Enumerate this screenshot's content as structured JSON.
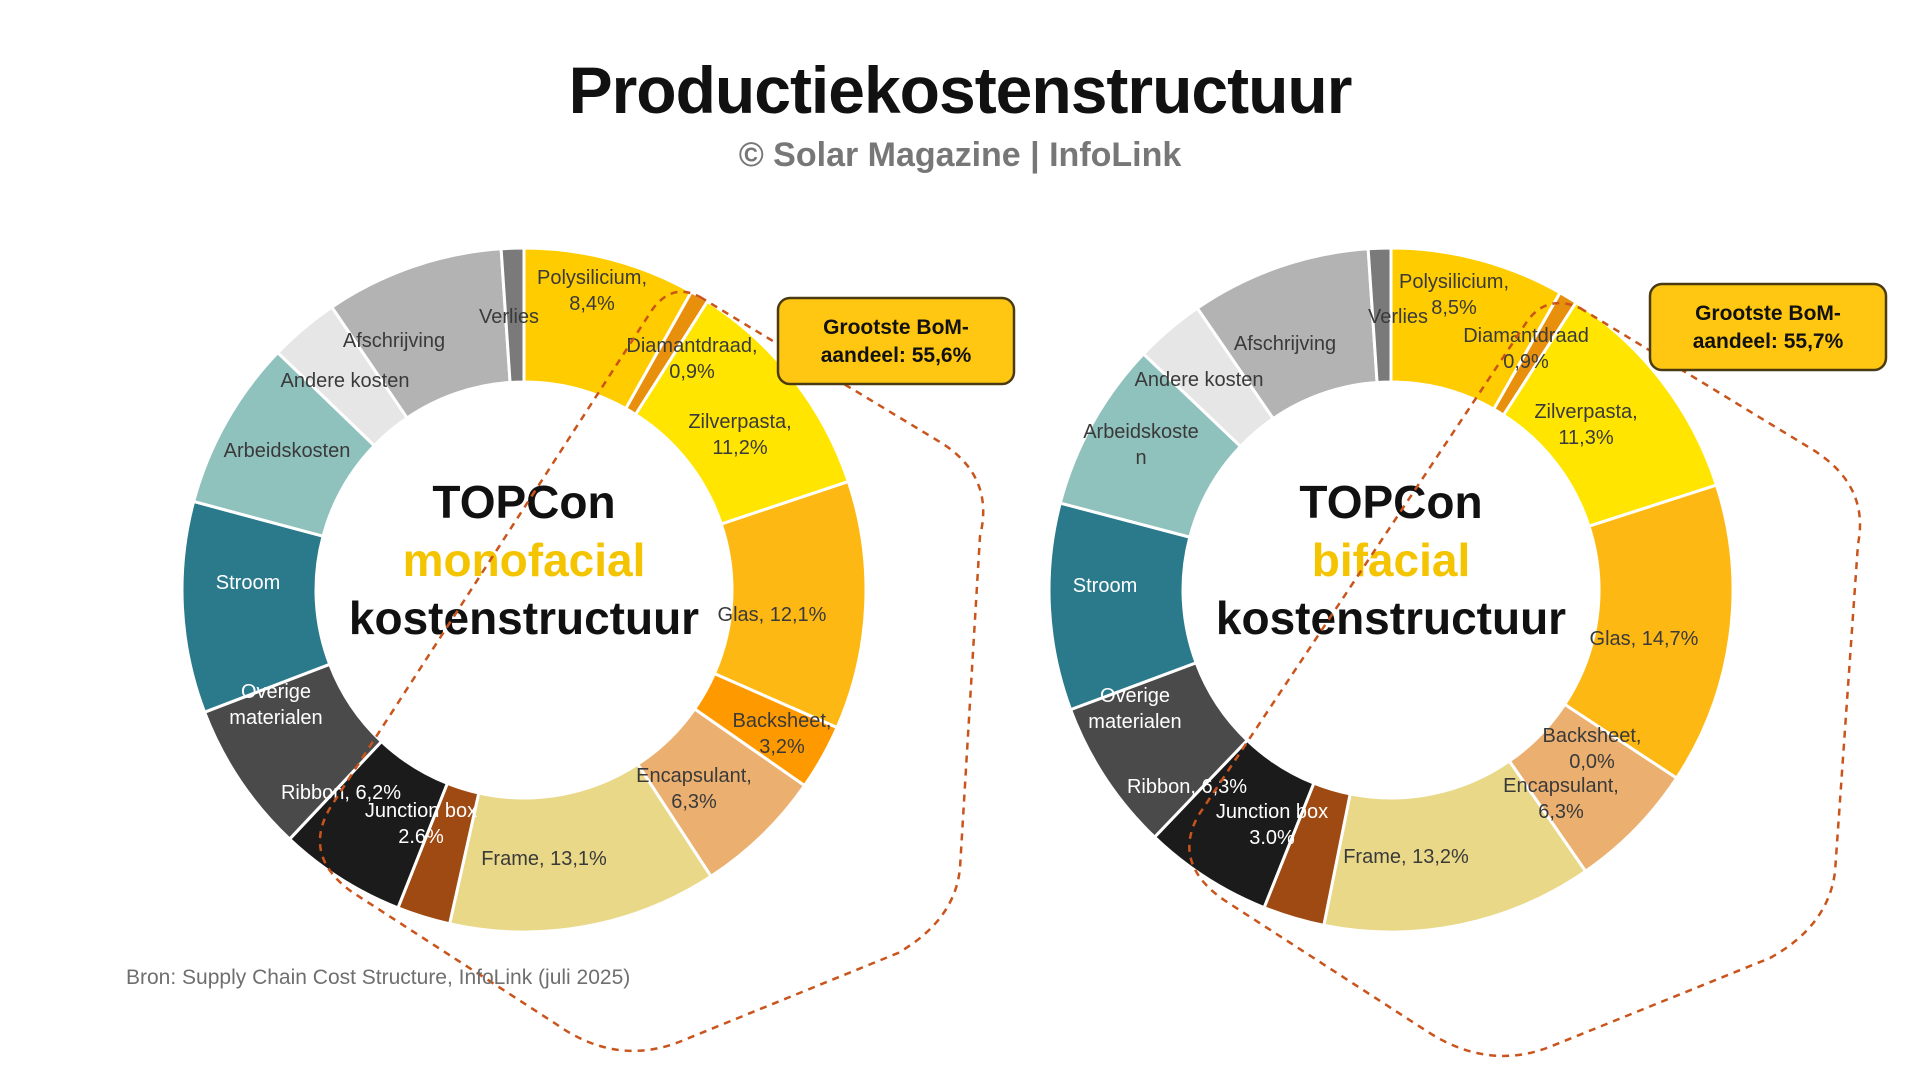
{
  "header": {
    "title": "Productiekostenstructuur",
    "subtitle": "© Solar Magazine | InfoLink"
  },
  "source": "Bron: Supply Chain Cost Structure, InfoLink (juli 2025)",
  "chart_data": [
    {
      "type": "donut",
      "center": {
        "line1": "TOPCon",
        "line2": "monofacial",
        "line3": "kostenstructuur"
      },
      "callout": {
        "line1": "Grootste BoM-",
        "line2": "aandeel: 55,6%"
      },
      "colors": {
        "accent": "#F5C400",
        "callout_border": "#4a3b12",
        "dashed_outline": "#C9541C"
      },
      "slices": [
        {
          "name": "Polysilicium",
          "value": 8.4,
          "label": [
            "Polysilicium,",
            "8,4%"
          ],
          "color": "#FFCC00",
          "text_color": "#3a3a3a"
        },
        {
          "name": "Diamantdraad",
          "value": 0.9,
          "label": [
            "Diamantdraad,",
            "0,9%"
          ],
          "color": "#E8900C",
          "text_color": "#3a3a3a"
        },
        {
          "name": "Zilverpasta",
          "value": 11.2,
          "label": [
            "Zilverpasta,",
            "11,2%"
          ],
          "color": "#FFE500",
          "text_color": "#3a3a3a"
        },
        {
          "name": "Glas",
          "value": 12.1,
          "label": [
            "Glas, 12,1%"
          ],
          "color": "#FDB813",
          "text_color": "#3a3a3a"
        },
        {
          "name": "Backsheet",
          "value": 3.2,
          "label": [
            "Backsheet,",
            "3,2%"
          ],
          "color": "#FF9900",
          "text_color": "#3a3a3a"
        },
        {
          "name": "Encapsulant",
          "value": 6.3,
          "label": [
            "Encapsulant,",
            "6,3%"
          ],
          "color": "#EBAF70",
          "text_color": "#3a3a3a"
        },
        {
          "name": "Frame",
          "value": 13.1,
          "label": [
            "Frame, 13,1%"
          ],
          "color": "#E8D888",
          "text_color": "#3a3a3a"
        },
        {
          "name": "Junction box",
          "value": 2.6,
          "label": [
            "Junction box",
            "2.6%"
          ],
          "color": "#9E4A12",
          "text_color": "#ffffff"
        },
        {
          "name": "Ribbon",
          "value": 6.2,
          "label": [
            "Ribbon, 6,2%"
          ],
          "color": "#1B1B1B",
          "text_color": "#ffffff"
        },
        {
          "name": "Overige materialen",
          "value": 7.4,
          "label": [
            "Overige",
            "materialen"
          ],
          "color": "#4A4A4A",
          "text_color": "#ffffff"
        },
        {
          "name": "Stroom",
          "value": 10.3,
          "label": [
            "Stroom"
          ],
          "color": "#2B7A8C",
          "text_color": "#ffffff"
        },
        {
          "name": "Arbeidskosten",
          "value": 8.3,
          "label": [
            "Arbeidskosten"
          ],
          "color": "#8FC1BD",
          "text_color": "#3a3a3a"
        },
        {
          "name": "Andere kosten",
          "value": 3.4,
          "label": [
            "Andere kosten"
          ],
          "color": "#E6E6E6",
          "text_color": "#3a3a3a"
        },
        {
          "name": "Afschrijving",
          "value": 8.7,
          "label": [
            "Afschrijving"
          ],
          "color": "#B3B3B3",
          "text_color": "#3a3a3a"
        },
        {
          "name": "Verlies",
          "value": 1.1,
          "label": [
            "Verlies"
          ],
          "color": "#7A7A7A",
          "text_color": "#3a3a3a"
        }
      ]
    },
    {
      "type": "donut",
      "center": {
        "line1": "TOPCon",
        "line2": "bifacial",
        "line3": "kostenstructuur"
      },
      "callout": {
        "line1": "Grootste BoM-",
        "line2": "aandeel: 55,7%"
      },
      "colors": {
        "accent": "#F5C400",
        "callout_border": "#4a3b12",
        "dashed_outline": "#C9541C"
      },
      "slices": [
        {
          "name": "Polysilicium",
          "value": 8.5,
          "label": [
            "Polysilicium,",
            "8,5%"
          ],
          "color": "#FFCC00",
          "text_color": "#3a3a3a"
        },
        {
          "name": "Diamantdraad",
          "value": 0.9,
          "label": [
            "Diamantdraad",
            "0,9%"
          ],
          "color": "#E8900C",
          "text_color": "#3a3a3a"
        },
        {
          "name": "Zilverpasta",
          "value": 11.3,
          "label": [
            "Zilverpasta,",
            "11,3%"
          ],
          "color": "#FFE500",
          "text_color": "#3a3a3a"
        },
        {
          "name": "Glas",
          "value": 14.7,
          "label": [
            "Glas, 14,7%"
          ],
          "color": "#FDB813",
          "text_color": "#3a3a3a"
        },
        {
          "name": "Backsheet",
          "value": 0.0,
          "label": [
            "Backsheet,",
            "0,0%"
          ],
          "color": "#FF9900",
          "text_color": "#3a3a3a"
        },
        {
          "name": "Encapsulant",
          "value": 6.3,
          "label": [
            "Encapsulant,",
            "6,3%"
          ],
          "color": "#EBAF70",
          "text_color": "#3a3a3a"
        },
        {
          "name": "Frame",
          "value": 13.2,
          "label": [
            "Frame, 13,2%"
          ],
          "color": "#E8D888",
          "text_color": "#3a3a3a"
        },
        {
          "name": "Junction box",
          "value": 3.0,
          "label": [
            "Junction box",
            "3.0%"
          ],
          "color": "#9E4A12",
          "text_color": "#ffffff"
        },
        {
          "name": "Ribbon",
          "value": 6.3,
          "label": [
            "Ribbon, 6,3%"
          ],
          "color": "#1B1B1B",
          "text_color": "#ffffff"
        },
        {
          "name": "Overige materialen",
          "value": 7.4,
          "label": [
            "Overige",
            "materialen"
          ],
          "color": "#4A4A4A",
          "text_color": "#ffffff"
        },
        {
          "name": "Stroom",
          "value": 10.1,
          "label": [
            "Stroom"
          ],
          "color": "#2B7A8C",
          "text_color": "#ffffff"
        },
        {
          "name": "Arbeidskosten",
          "value": 8.3,
          "label": [
            "Arbeidskoste",
            "n"
          ],
          "color": "#8FC1BD",
          "text_color": "#3a3a3a"
        },
        {
          "name": "Andere kosten",
          "value": 3.4,
          "label": [
            "Andere kosten"
          ],
          "color": "#E6E6E6",
          "text_color": "#3a3a3a"
        },
        {
          "name": "Afschrijving",
          "value": 8.8,
          "label": [
            "Afschrijving"
          ],
          "color": "#B3B3B3",
          "text_color": "#3a3a3a"
        },
        {
          "name": "Verlies",
          "value": 1.1,
          "label": [
            "Verlies"
          ],
          "color": "#7A7A7A",
          "text_color": "#3a3a3a"
        }
      ]
    }
  ]
}
